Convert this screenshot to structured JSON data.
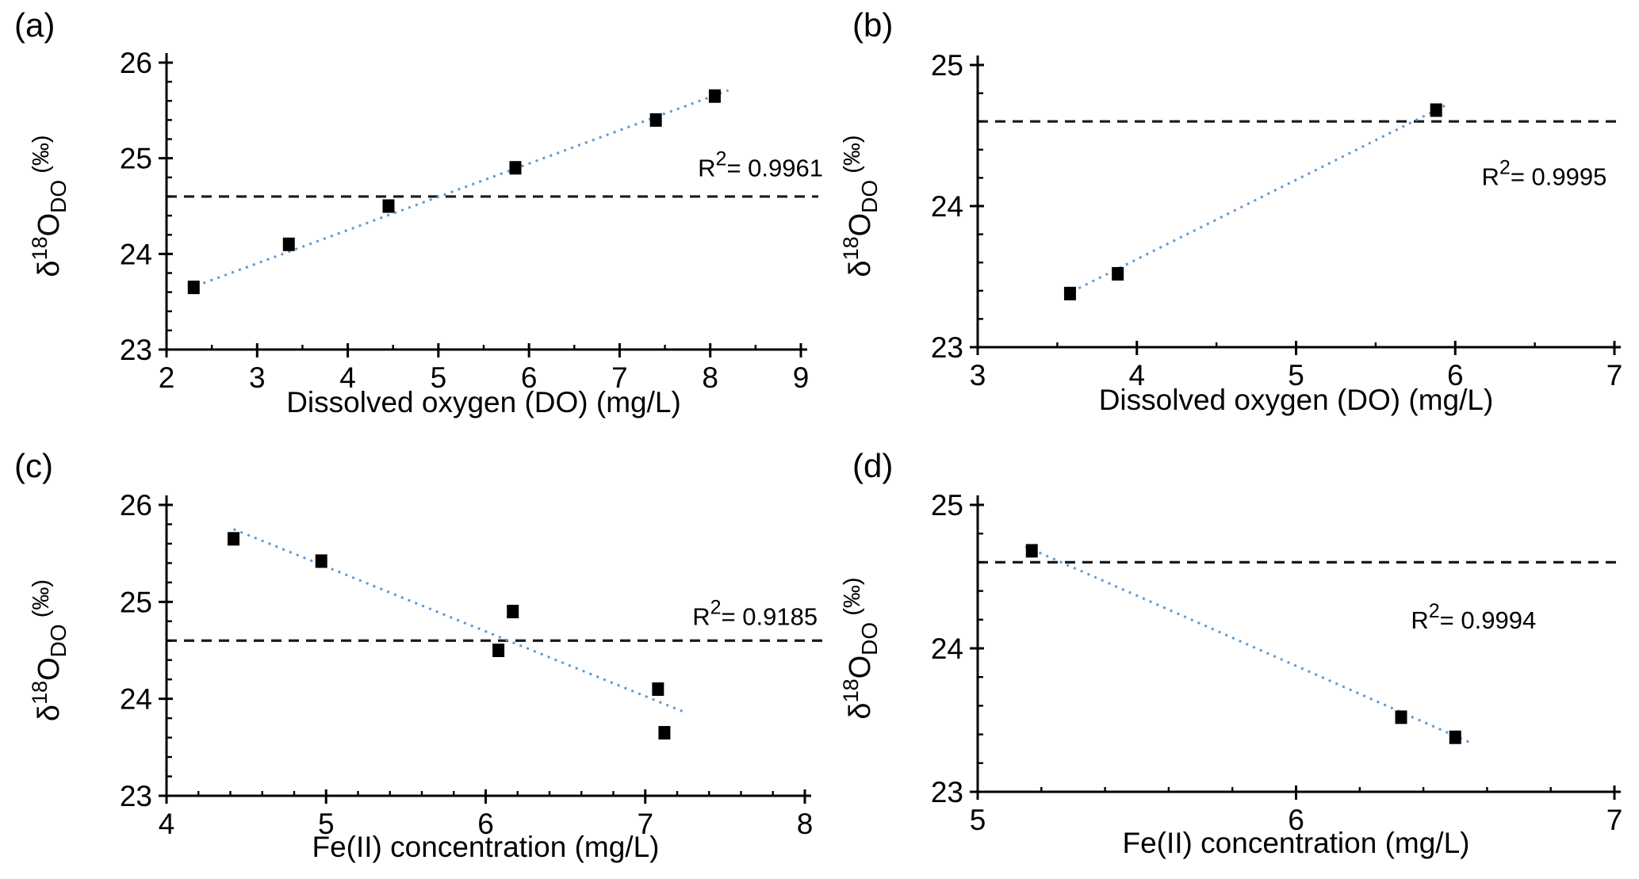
{
  "figure": {
    "background": "#ffffff",
    "colors": {
      "axis": "#000000",
      "marker": "#000000",
      "dashed_reference_line": "#1a1a1a",
      "trendline": "#5B9BD5"
    },
    "ylabel_parts": {
      "delta": "δ",
      "superscript": "18",
      "oxygen": "O",
      "subscript": "DO",
      "unit": " (‰)"
    }
  },
  "chart_data": [
    {
      "type": "scatter",
      "panel_label": "(a)",
      "xlabel": "Dissolved oxygen (DO) (mg/L)",
      "ylabel": "δ¹⁸O_DO (‰)",
      "xlim": [
        2,
        9
      ],
      "ylim": [
        23,
        26
      ],
      "xticks": [
        2,
        3,
        4,
        5,
        6,
        7,
        8,
        9
      ],
      "yticks": [
        23,
        24,
        25,
        26
      ],
      "x_minor_step": 0.5,
      "y_minor_step": 0.2,
      "points": [
        [
          2.3,
          23.65
        ],
        [
          3.35,
          24.1
        ],
        [
          4.45,
          24.5
        ],
        [
          5.85,
          24.9
        ],
        [
          7.4,
          25.4
        ],
        [
          8.05,
          25.65
        ]
      ],
      "trendline": {
        "x1": 2.25,
        "y1": 23.64,
        "x2": 8.2,
        "y2": 25.71
      },
      "dashed_reference_y": 24.6,
      "r2": {
        "base": "R",
        "exponent": "2",
        "rest": "= 0.9961",
        "value": 0.9961,
        "x_frac": 1.035,
        "y": 24.9
      },
      "legend": "none",
      "grid": false
    },
    {
      "type": "scatter",
      "panel_label": "(b)",
      "xlabel": "Dissolved oxygen (DO) (mg/L)",
      "ylabel": "δ¹⁸O_DO (‰)",
      "xlim": [
        3,
        7
      ],
      "ylim": [
        23,
        25
      ],
      "xticks": [
        3,
        4,
        5,
        6,
        7
      ],
      "yticks": [
        23,
        24,
        25
      ],
      "x_minor_step": 0.5,
      "y_minor_step": 0.2,
      "points": [
        [
          3.58,
          23.38
        ],
        [
          3.88,
          23.52
        ],
        [
          5.88,
          24.68
        ]
      ],
      "trendline": {
        "x1": 3.55,
        "y1": 23.37,
        "x2": 5.95,
        "y2": 24.72
      },
      "dashed_reference_y": 24.6,
      "r2": {
        "base": "R",
        "exponent": "2",
        "rest": "= 0.9995",
        "value": 0.9995,
        "x_frac": 0.988,
        "y": 24.21
      },
      "legend": "none",
      "grid": false
    },
    {
      "type": "scatter",
      "panel_label": "(c)",
      "xlabel": "Fe(II) concentration (mg/L)",
      "ylabel": "δ¹⁸O_DO (‰)",
      "xlim": [
        4,
        8
      ],
      "ylim": [
        23,
        26
      ],
      "xticks": [
        4,
        5,
        6,
        7,
        8
      ],
      "yticks": [
        23,
        24,
        25,
        26
      ],
      "x_minor_step": 0.2,
      "y_minor_step": 0.2,
      "points": [
        [
          4.42,
          25.65
        ],
        [
          4.97,
          25.42
        ],
        [
          6.08,
          24.5
        ],
        [
          6.17,
          24.9
        ],
        [
          7.08,
          24.1
        ],
        [
          7.12,
          23.65
        ]
      ],
      "trendline": {
        "x1": 4.42,
        "y1": 25.75,
        "x2": 7.25,
        "y2": 23.86
      },
      "dashed_reference_y": 24.6,
      "r2": {
        "base": "R",
        "exponent": "2",
        "rest": "= 0.9185",
        "value": 0.9185,
        "x_frac": 1.02,
        "y": 24.85
      },
      "legend": "none",
      "grid": false
    },
    {
      "type": "scatter",
      "panel_label": "(d)",
      "xlabel": "Fe(II) concentration (mg/L)",
      "ylabel": "δ¹⁸O_DO (‰)",
      "xlim": [
        5,
        7
      ],
      "ylim": [
        23,
        25
      ],
      "xticks": [
        5,
        6,
        7
      ],
      "yticks": [
        23,
        24,
        25
      ],
      "x_minor_step": 0.2,
      "y_minor_step": 0.2,
      "points": [
        [
          5.17,
          24.68
        ],
        [
          6.33,
          23.52
        ],
        [
          6.5,
          23.38
        ]
      ],
      "trendline": {
        "x1": 5.15,
        "y1": 24.71,
        "x2": 6.55,
        "y2": 23.34
      },
      "dashed_reference_y": 24.6,
      "r2": {
        "base": "R",
        "exponent": "2",
        "rest": "= 0.9994",
        "value": 0.9994,
        "x_frac": 0.877,
        "y": 24.2
      },
      "legend": "none",
      "grid": false
    }
  ]
}
